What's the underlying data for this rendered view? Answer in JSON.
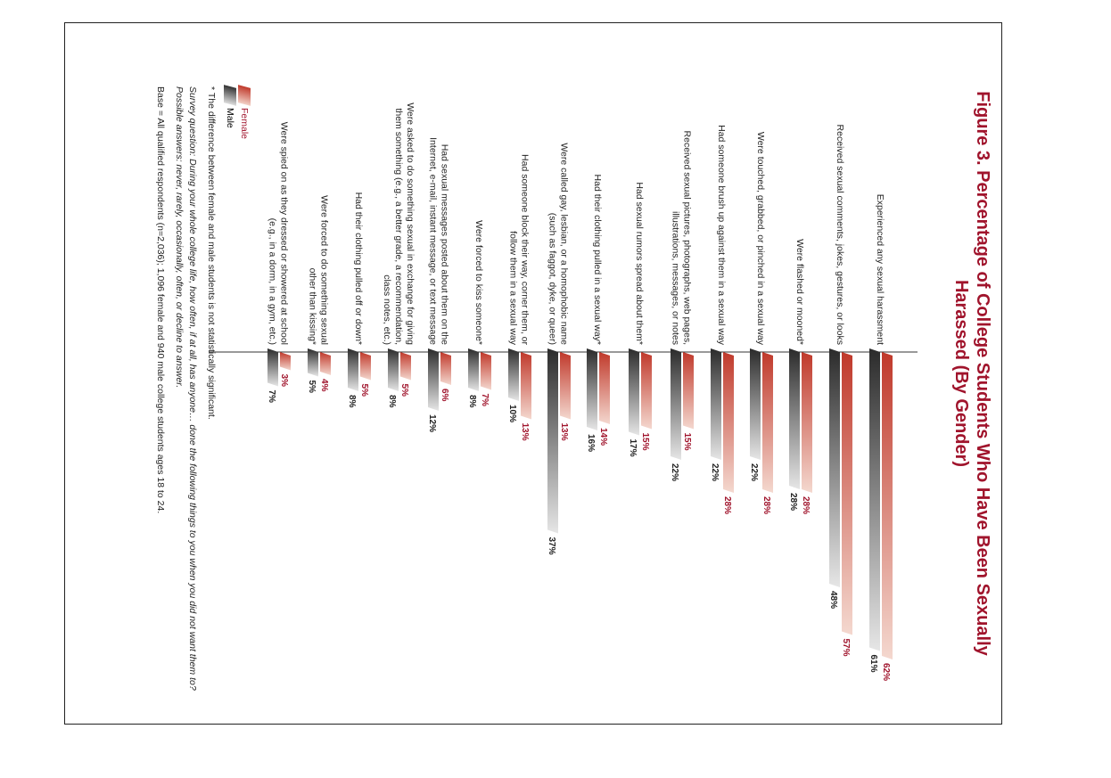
{
  "chart_data": {
    "type": "bar",
    "title": "Figure 3. Percentage of College Students Who Have Been Sexually Harassed (By Gender)",
    "categories": [
      "Experienced any sexual harassment",
      "Received sexual comments, jokes, gestures, or looks",
      "Were flashed or mooned*",
      "Were touched, grabbed, or pinched in a sexual way",
      "Had someone brush up against them in a sexual way",
      "Received sexual pictures, photographs, web pages, illustrations, messages, or notes",
      "Had sexual rumors spread about them*",
      "Had their clothing pulled in a sexual way*",
      "Were called gay, lesbian, or a homophobic name (such as faggot, dyke, or queer)",
      "Had someone block their way, corner them, or follow them in a sexual way",
      "Were forced to kiss someone*",
      "Had sexual messages posted about them on the Internet, e-mail, instant message, or text message",
      "Were asked to do something sexual in exchange for giving them something (e.g., a better grade, a recommendation, class notes, etc.)",
      "Had their clothing pulled off or down*",
      "Were forced to do something sexual other than kissing*",
      "Were spied on as they dressed or showered at school (e.g., in a dorm, in a gym, etc.)"
    ],
    "label_lines": [
      [
        "Experienced any sexual harassment"
      ],
      [
        "Received sexual comments, jokes, gestures, or looks"
      ],
      [
        "Were flashed or mooned*"
      ],
      [
        "Were touched, grabbed, or pinched in a sexual way"
      ],
      [
        "Had someone brush up against them in a sexual way"
      ],
      [
        "Received sexual pictures, photographs, web pages,",
        "illustrations, messages, or notes"
      ],
      [
        "Had sexual rumors spread about them*"
      ],
      [
        "Had their clothing pulled in a sexual way*"
      ],
      [
        "Were called gay, lesbian, or a homophobic name",
        "(such as faggot, dyke, or queer)"
      ],
      [
        "Had someone block their way, corner them, or",
        "follow them in a sexual way"
      ],
      [
        "Were forced to kiss someone*"
      ],
      [
        "Had sexual messages posted about them on the",
        "Internet, e-mail, instant message, or text message"
      ],
      [
        "Were asked to do something sexual in exchange for giving",
        "them something (e.g., a better grade, a recommendation,",
        "class notes, etc.)"
      ],
      [
        "Had their clothing pulled off or down*"
      ],
      [
        "Were forced to do something sexual",
        "other than kissing*"
      ],
      [
        "Were spied on as they dressed or showered at school",
        "(e.g., in a dorm, in a gym, etc.)"
      ]
    ],
    "series": [
      {
        "name": "Female",
        "values": [
          62,
          57,
          28,
          28,
          28,
          15,
          15,
          14,
          13,
          13,
          7,
          6,
          5,
          5,
          4,
          3
        ]
      },
      {
        "name": "Male",
        "values": [
          61,
          48,
          28,
          22,
          22,
          22,
          17,
          16,
          37,
          10,
          8,
          12,
          8,
          8,
          5,
          7
        ]
      }
    ],
    "value_suffix": "%",
    "colors": {
      "female": "#a0142c",
      "female_light": "#f4d8cf",
      "male": "#2b2b2b",
      "male_light": "#e6e6e6"
    },
    "xlim": [
      0,
      100
    ],
    "legend": "bottom-left"
  },
  "legend": {
    "female": "Female",
    "male": "Male"
  },
  "notes": {
    "footnote": "* The difference between female and male students is not statistically significant.",
    "question": "Survey question: During your whole college life, how often, if at all, has anyone… done the following things to you when you did not want them to? Possible answers: never, rarely, occasionally, often, or decline to answer.",
    "base": "Base = All qualified respondents (n=2,036); 1,096 female and 940 male college students ages 18 to 24."
  }
}
